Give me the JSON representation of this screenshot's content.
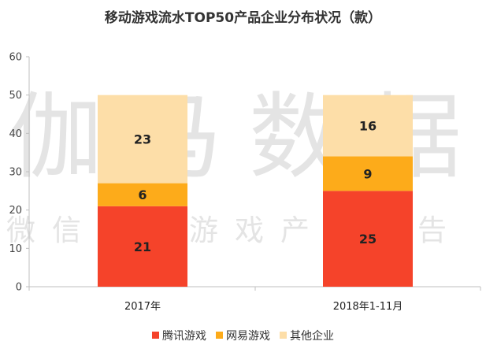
{
  "watermark": {
    "brand": "伽马数据",
    "tagline": "微信号：游戏产业报告"
  },
  "chart_data": {
    "type": "bar",
    "stacked": true,
    "title": "移动游戏流水TOP50产品企业分布状况（款）",
    "categories": [
      "2017年",
      "2018年1-11月"
    ],
    "series": [
      {
        "name": "腾讯游戏",
        "values": [
          21,
          25
        ],
        "color": "#f5432a"
      },
      {
        "name": "网易游戏",
        "values": [
          6,
          9
        ],
        "color": "#fdab1a"
      },
      {
        "name": "其他企业",
        "values": [
          23,
          16
        ],
        "color": "#fddea8"
      }
    ],
    "ylim": [
      0,
      60
    ],
    "yticks": [
      0,
      10,
      20,
      30,
      40,
      50,
      60
    ],
    "grid": false,
    "legend_position": "bottom"
  }
}
